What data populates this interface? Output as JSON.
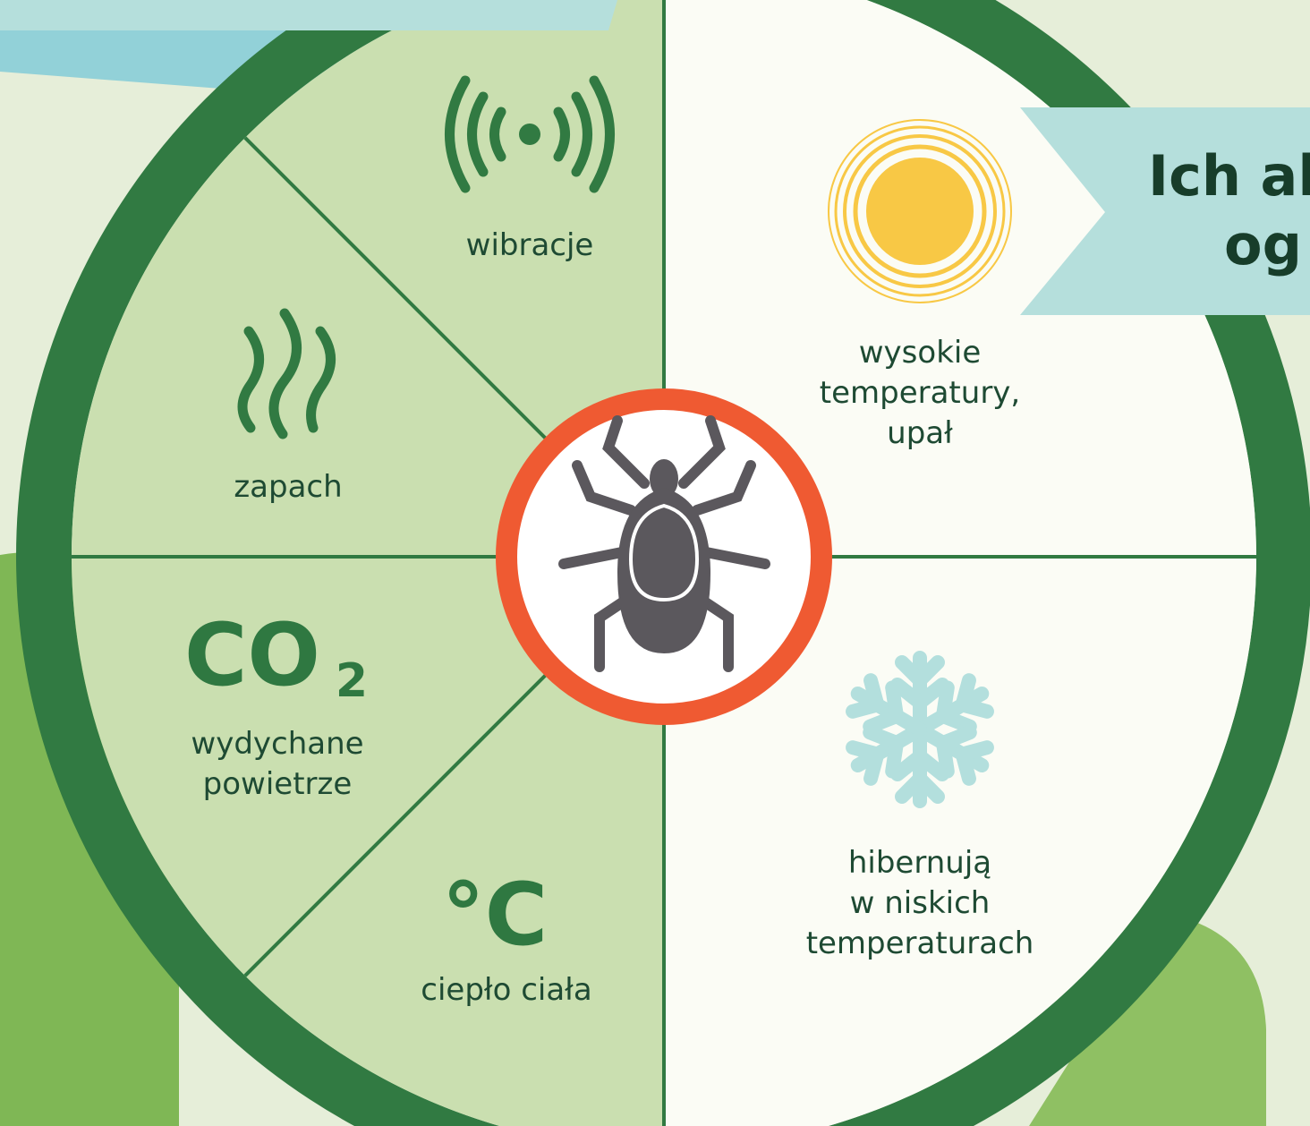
{
  "banner": {
    "lines": [
      "Ich al",
      "og"
    ]
  },
  "attractants": [
    {
      "label": "wibracje"
    },
    {
      "label": "zapach"
    },
    {
      "symbol": "CO",
      "subscript": "2",
      "label_lines": [
        "wydychane",
        "powietrze"
      ]
    },
    {
      "symbol": "°C",
      "label": "ciepło ciała"
    }
  ],
  "deterrents": [
    {
      "label_lines": [
        "wysokie",
        "temperatury,",
        "upał"
      ]
    },
    {
      "label_lines": [
        "hibernują",
        "w niskich",
        "temperaturach"
      ]
    }
  ]
}
